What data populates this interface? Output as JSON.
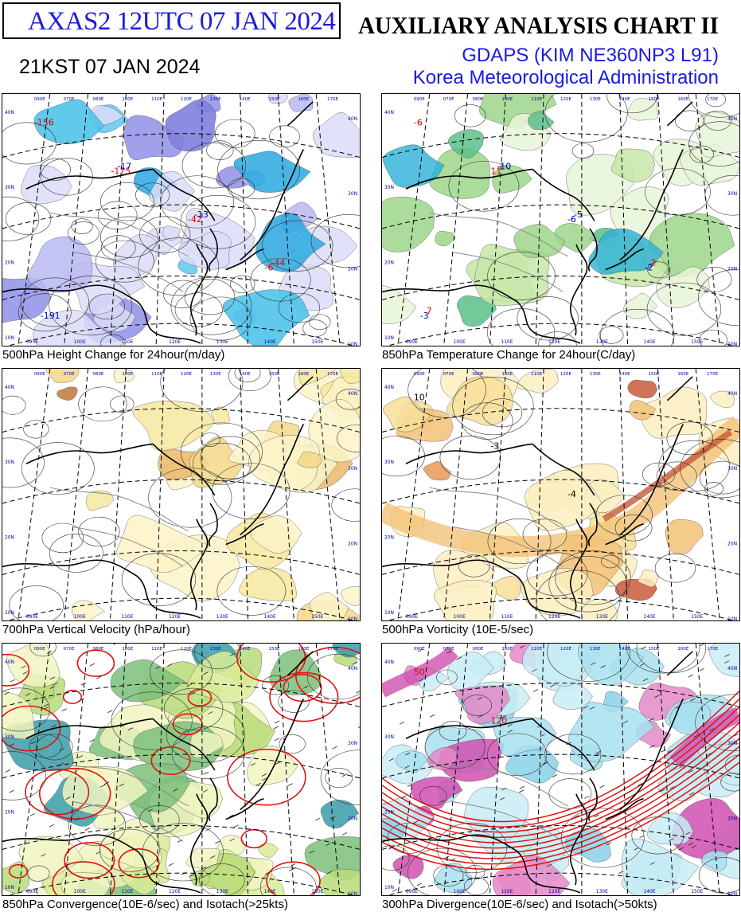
{
  "header": {
    "product": "AXAS2  12UTC 07 JAN 2024",
    "local_time": "21KST 07 JAN 2024",
    "title": "AUXILIARY ANALYSIS CHART II",
    "model": "GDAPS (KIM NE360NP3 L91)",
    "agency": "Korea Meteorological Administration"
  },
  "panels": [
    {
      "id": "p1",
      "caption": "500hPa Height Change for 24hour(m/day)",
      "fill": "blue",
      "labels": [
        {
          "t": "-156",
          "c": "#d00"
        },
        {
          "t": "-175",
          "c": "#d00"
        },
        {
          "t": "-42",
          "c": "#d00"
        },
        {
          "t": "-6",
          "c": "#d00"
        },
        {
          "t": "-191",
          "c": "#00a"
        },
        {
          "t": "-17",
          "c": "#00a"
        },
        {
          "t": "-13",
          "c": "#00a"
        },
        {
          "t": "-44",
          "c": "#d00"
        }
      ]
    },
    {
      "id": "p2",
      "caption": "850hPa Temperature Change for 24hour(C/day)",
      "fill": "green",
      "labels": [
        {
          "t": "-6",
          "c": "#d00"
        },
        {
          "t": "11",
          "c": "#d00"
        },
        {
          "t": "-6",
          "c": "#00a"
        },
        {
          "t": "-2",
          "c": "#00a"
        },
        {
          "t": "-3",
          "c": "#00a"
        },
        {
          "t": "-10",
          "c": "#00a"
        },
        {
          "t": "-5",
          "c": "#00a"
        },
        {
          "t": "2",
          "c": "#d00"
        },
        {
          "t": "7",
          "c": "#d00"
        }
      ]
    },
    {
      "id": "p3",
      "caption": "700hPa Vertical Velocity (hPa/hour)",
      "fill": "yellow",
      "labels": []
    },
    {
      "id": "p4",
      "caption": "500hPa Vorticity (10E-5/sec)",
      "fill": "orange",
      "labels": [
        {
          "t": "10",
          "c": "#000"
        },
        {
          "t": "-3",
          "c": "#000"
        },
        {
          "t": "-4",
          "c": "#000"
        }
      ]
    },
    {
      "id": "p5",
      "caption": "850hPa Convergence(10E-6/sec) and Isotach(>25kts)",
      "fill": "lime",
      "labels": []
    },
    {
      "id": "p6",
      "caption": "300hPa Divergence(10E-6/sec) and Isotach(>50kts)",
      "fill": "cyan",
      "labels": [
        {
          "t": "50",
          "c": "#d00"
        },
        {
          "t": "120",
          "c": "#d00"
        }
      ]
    }
  ],
  "lon_labels": [
    "090E",
    "100E",
    "110E",
    "120E",
    "130E",
    "140E",
    "150E"
  ],
  "lat_labels": [
    "40N",
    "30N",
    "20N",
    "10N"
  ],
  "grid_top_labels": [
    "090E",
    "070E",
    "080E",
    "100E",
    "110E",
    "120E",
    "130E",
    "140E",
    "150E",
    "160E",
    "170E"
  ],
  "colors": {
    "title_blue": "#1a1adf",
    "contour_red": "#e01010",
    "border": "#000000"
  }
}
